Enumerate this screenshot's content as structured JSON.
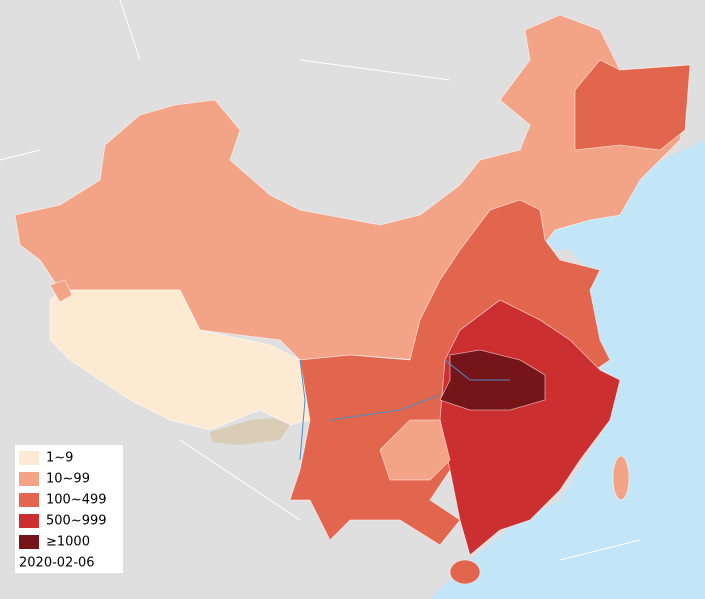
{
  "legend": {
    "items": [
      {
        "label": "1~9",
        "color": "#fcebd2"
      },
      {
        "label": "10~99",
        "color": "#f3a487"
      },
      {
        "label": "100~499",
        "color": "#e2664d"
      },
      {
        "label": "500~999",
        "color": "#cc2f30"
      },
      {
        "label": "≥1000",
        "color": "#751419"
      }
    ],
    "date": "2020-02-06"
  }
}
